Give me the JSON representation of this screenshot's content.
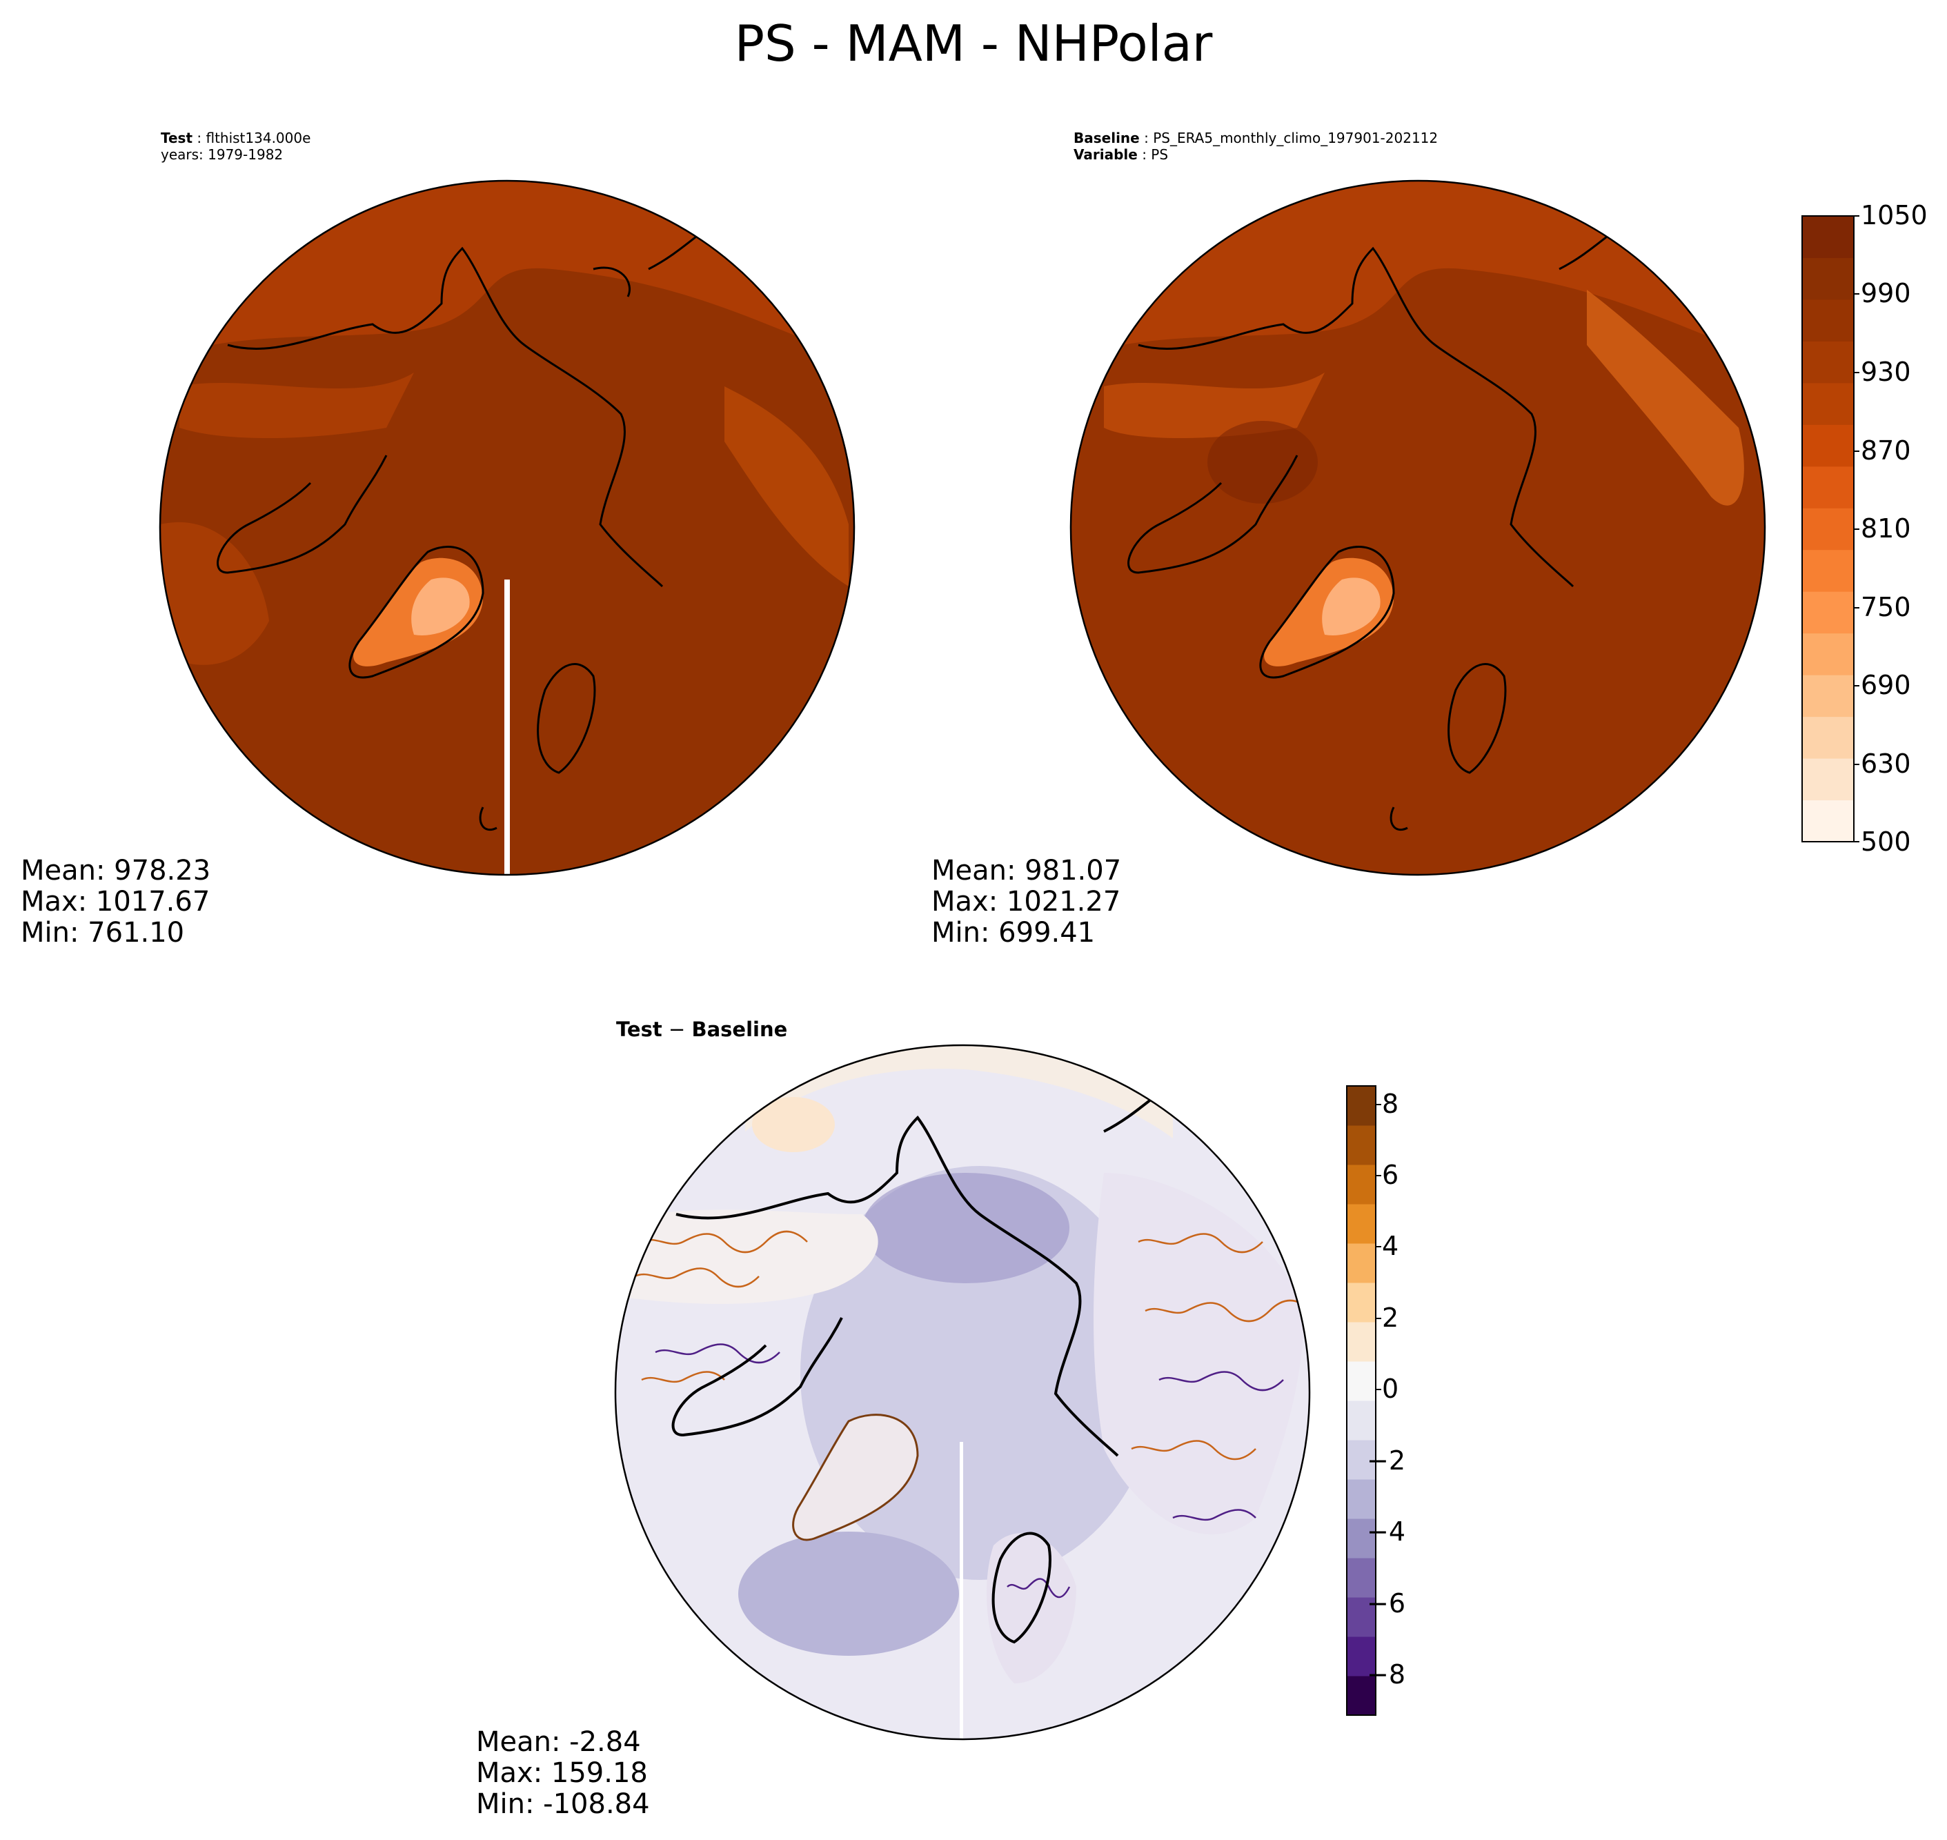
{
  "figure_title": "PS - MAM - NHPolar",
  "panels": {
    "test": {
      "header": {
        "label": "Test",
        "value": "flthist134.000e",
        "line2": "years: 1979-1982"
      },
      "stats": {
        "mean": "Mean: 978.23",
        "max": "Max: 1017.67",
        "min": "Min: 761.10"
      }
    },
    "baseline": {
      "header": {
        "label": "Baseline",
        "value": "PS_ERA5_monthly_climo_197901-202112",
        "label2": "Variable",
        "value2": "PS"
      },
      "stats": {
        "mean": "Mean: 981.07",
        "max": "Max: 1021.27",
        "min": "Min: 699.41"
      }
    },
    "diff": {
      "title_a": "Test",
      "title_op": " − ",
      "title_b": "Baseline",
      "stats": {
        "mean": "Mean: -2.84",
        "max": "Max: 159.18",
        "min": "Min: -108.84"
      }
    }
  },
  "colorbar_main": {
    "ticks": [
      "1050",
      "990",
      "930",
      "870",
      "810",
      "750",
      "690",
      "630",
      "500"
    ],
    "colors": [
      "#fff3e8",
      "#fde4cb",
      "#fdd3aa",
      "#fdc088",
      "#fdab67",
      "#fd954b",
      "#f78032",
      "#ec6b1f",
      "#df5a12",
      "#cc4a06",
      "#b84304",
      "#a63b03",
      "#973402",
      "#8b3003",
      "#7f2704"
    ]
  },
  "colorbar_diff": {
    "ticks": [
      "8",
      "6",
      "4",
      "2",
      "0",
      "−2",
      "−4",
      "−6",
      "−8"
    ],
    "colors": [
      "#7f3b08",
      "#a65208",
      "#cc7010",
      "#e88e25",
      "#f8b260",
      "#fdd49e",
      "#fbe8d0",
      "#f7f7f7",
      "#e6e6f0",
      "#d1d0e6",
      "#b5b3d6",
      "#9891c2",
      "#7e6aae",
      "#66449a",
      "#4f1f86",
      "#2d004b"
    ]
  },
  "map_colors": {
    "ocean_main": "#923202",
    "coast": "#000000",
    "diff_ocean": "#d6d4ea",
    "diff_land": "#f4f0f3"
  }
}
